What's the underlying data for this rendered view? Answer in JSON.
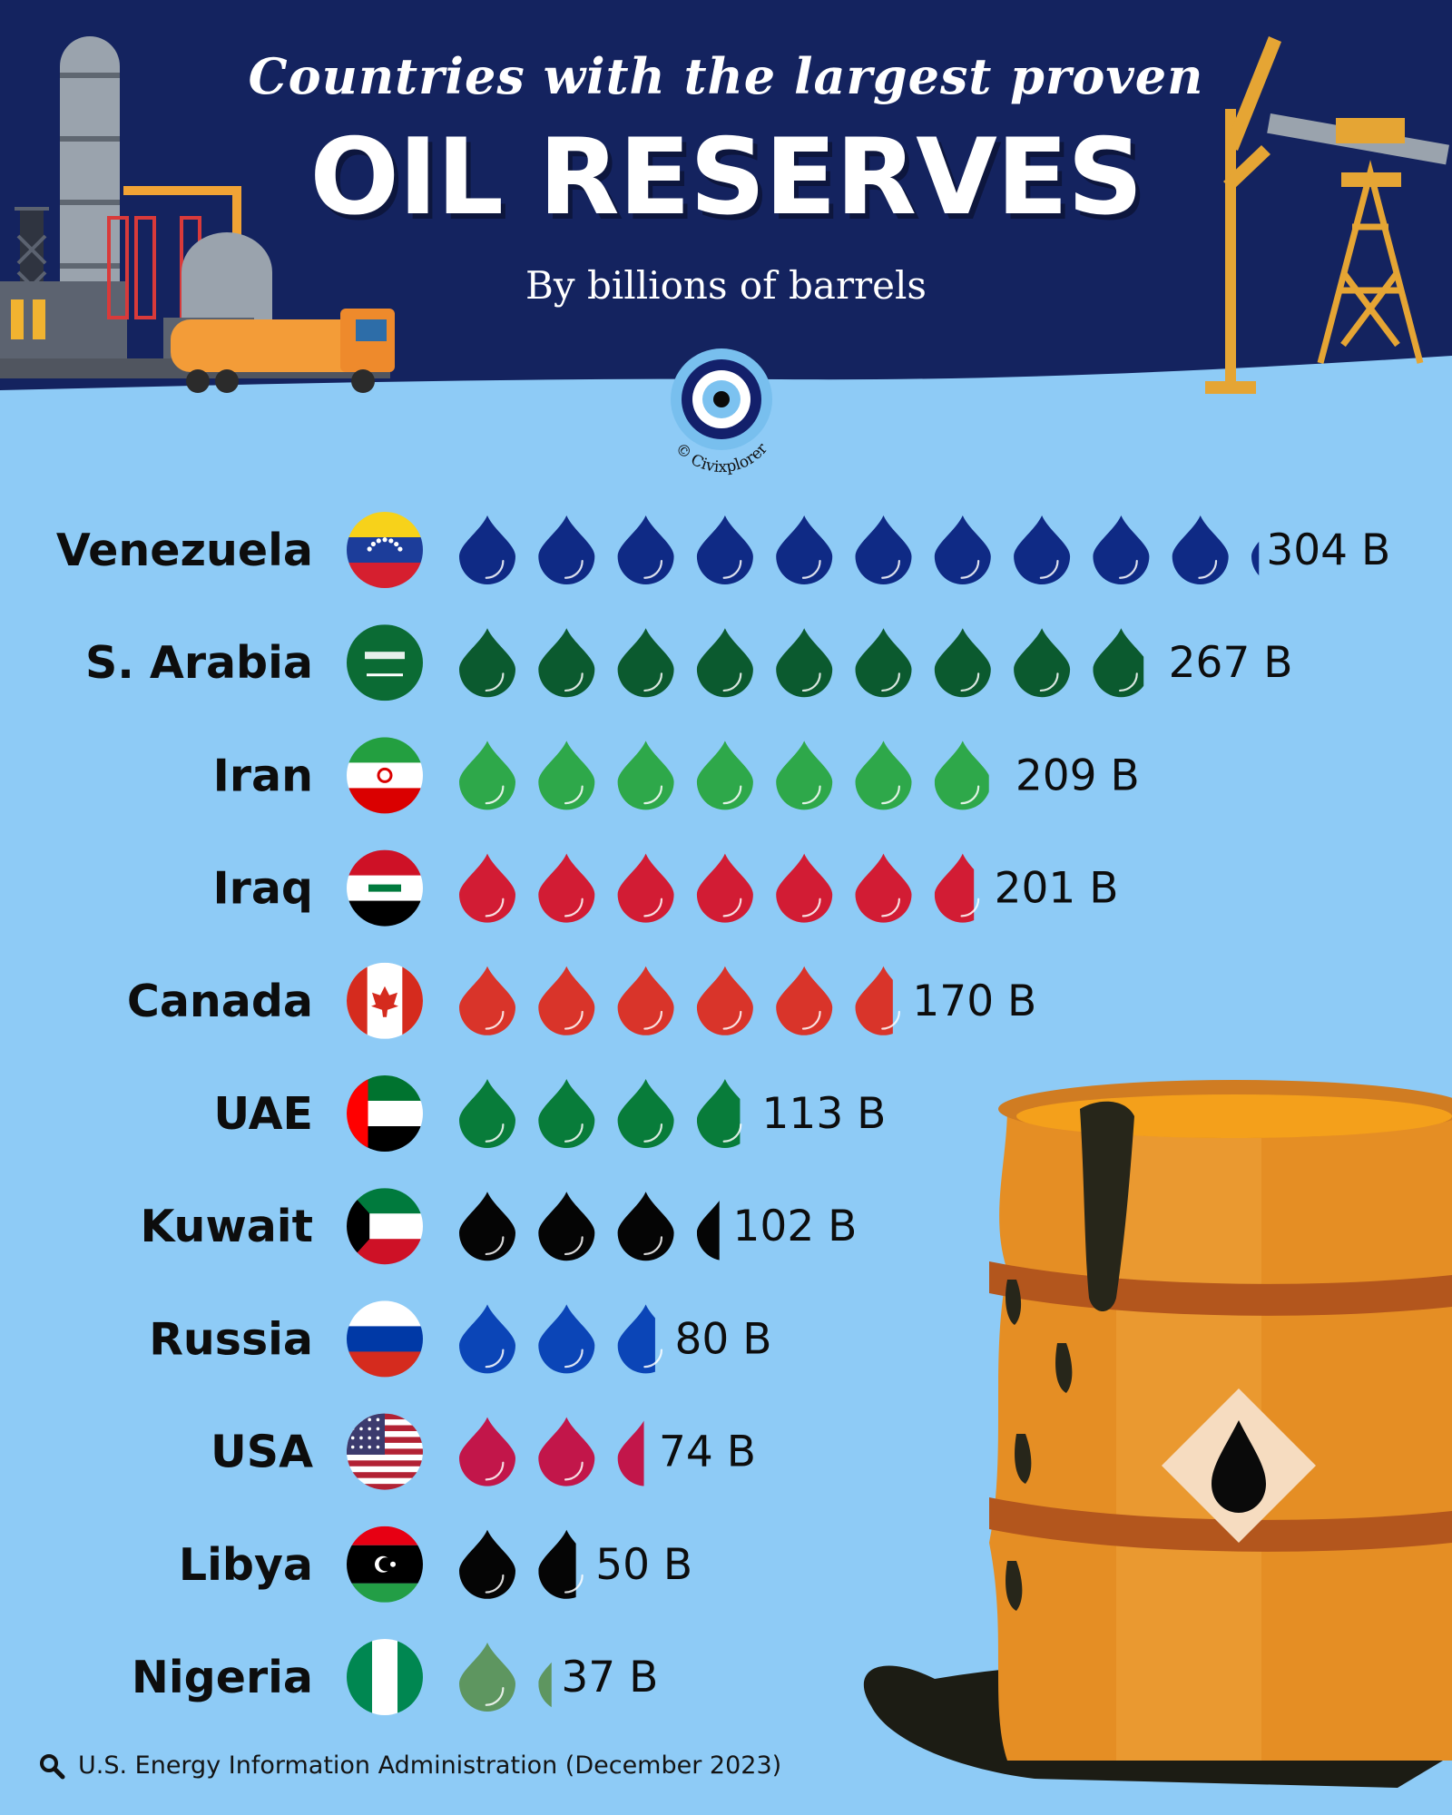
{
  "header": {
    "subtitle": "Countries with the largest proven",
    "title": "OIL RESERVES",
    "unit_note": "By billions of barrels",
    "credit": "© Civixplorer"
  },
  "footer": {
    "source_icon": "magnifier-icon",
    "source": "U.S. Energy Information Administration (December 2023)"
  },
  "chart_data": {
    "type": "bar",
    "title": "OIL RESERVES",
    "subtitle": "Countries with the largest proven",
    "ylabel": "By billions of barrels",
    "units_per_drop": 30,
    "categories": [
      "Venezuela",
      "S. Arabia",
      "Iran",
      "Iraq",
      "Canada",
      "UAE",
      "Kuwait",
      "Russia",
      "USA",
      "Libya",
      "Nigeria"
    ],
    "values": [
      304,
      267,
      209,
      201,
      170,
      113,
      102,
      80,
      74,
      50,
      37
    ],
    "value_labels": [
      "304 B",
      "267 B",
      "209 B",
      "201 B",
      "170 B",
      "113 B",
      "102 B",
      "80 B",
      "74 B",
      "50 B",
      "37 B"
    ],
    "colors": [
      "#0f2a85",
      "#0b5a2f",
      "#2ea84a",
      "#d21c34",
      "#d9342a",
      "#087c3a",
      "#050505",
      "#0b45b7",
      "#c2164a",
      "#050505",
      "#5e9660"
    ],
    "flags": [
      "venezuela-flag-icon",
      "saudi-arabia-flag-icon",
      "iran-flag-icon",
      "iraq-flag-icon",
      "canada-flag-icon",
      "uae-flag-icon",
      "kuwait-flag-icon",
      "russia-flag-icon",
      "usa-flag-icon",
      "libya-flag-icon",
      "nigeria-flag-icon"
    ]
  }
}
